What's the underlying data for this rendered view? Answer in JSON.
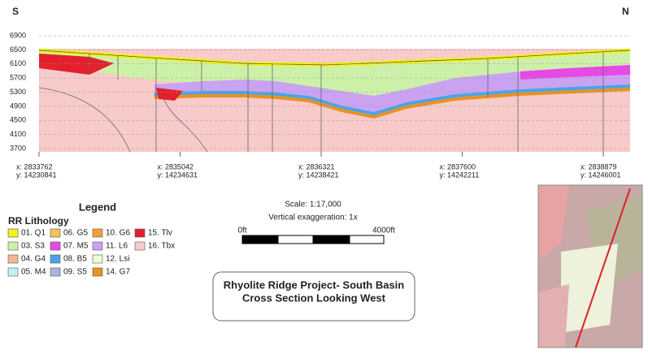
{
  "header": {
    "left": "S",
    "right": "N"
  },
  "section": {
    "yticks": [
      6900,
      6500,
      6100,
      5700,
      5300,
      4900,
      4500,
      4100,
      3700
    ],
    "xlabels": [
      {
        "x": "x: 2833762",
        "y": "y: 14230841"
      },
      {
        "x": "x: 2835042",
        "y": "y: 14234631"
      },
      {
        "x": "x: 2836321",
        "y": "y: 14238421"
      },
      {
        "x": "x: 2837600",
        "y": "y: 14242211"
      },
      {
        "x": "x: 2838879",
        "y": "y: 14246001"
      }
    ]
  },
  "legend": {
    "title": "Legend",
    "subtitle": "RR Lithology",
    "items": [
      {
        "label": "01. Q1",
        "color": "#f2f21c"
      },
      {
        "label": "03. S3",
        "color": "#cdf0a8"
      },
      {
        "label": "04. G4",
        "color": "#f3b98e"
      },
      {
        "label": "05. M4",
        "color": "#bff2f2"
      },
      {
        "label": "06. G5",
        "color": "#f4c35a"
      },
      {
        "label": "07. M5",
        "color": "#e64ae6"
      },
      {
        "label": "08. B5",
        "color": "#4aa3e8"
      },
      {
        "label": "09. S5",
        "color": "#a9b6dc"
      },
      {
        "label": "10. G6",
        "color": "#f2a13a"
      },
      {
        "label": "11. L6",
        "color": "#c9a3f2"
      },
      {
        "label": "12. Lsi",
        "color": "#f3f9d6"
      },
      {
        "label": "14. G7",
        "color": "#e8921e"
      },
      {
        "label": "15. Tlv",
        "color": "#e3202c"
      },
      {
        "label": "16. Tbx",
        "color": "#f8caca"
      }
    ]
  },
  "scale": {
    "ratio": "Scale: 1:17,000",
    "exaggeration": "Vertical exaggeration: 1x",
    "start": "0ft",
    "end": "4000ft"
  },
  "title": {
    "line1": "Rhyolite Ridge Project- South Basin",
    "line2": "Cross Section Looking West"
  }
}
